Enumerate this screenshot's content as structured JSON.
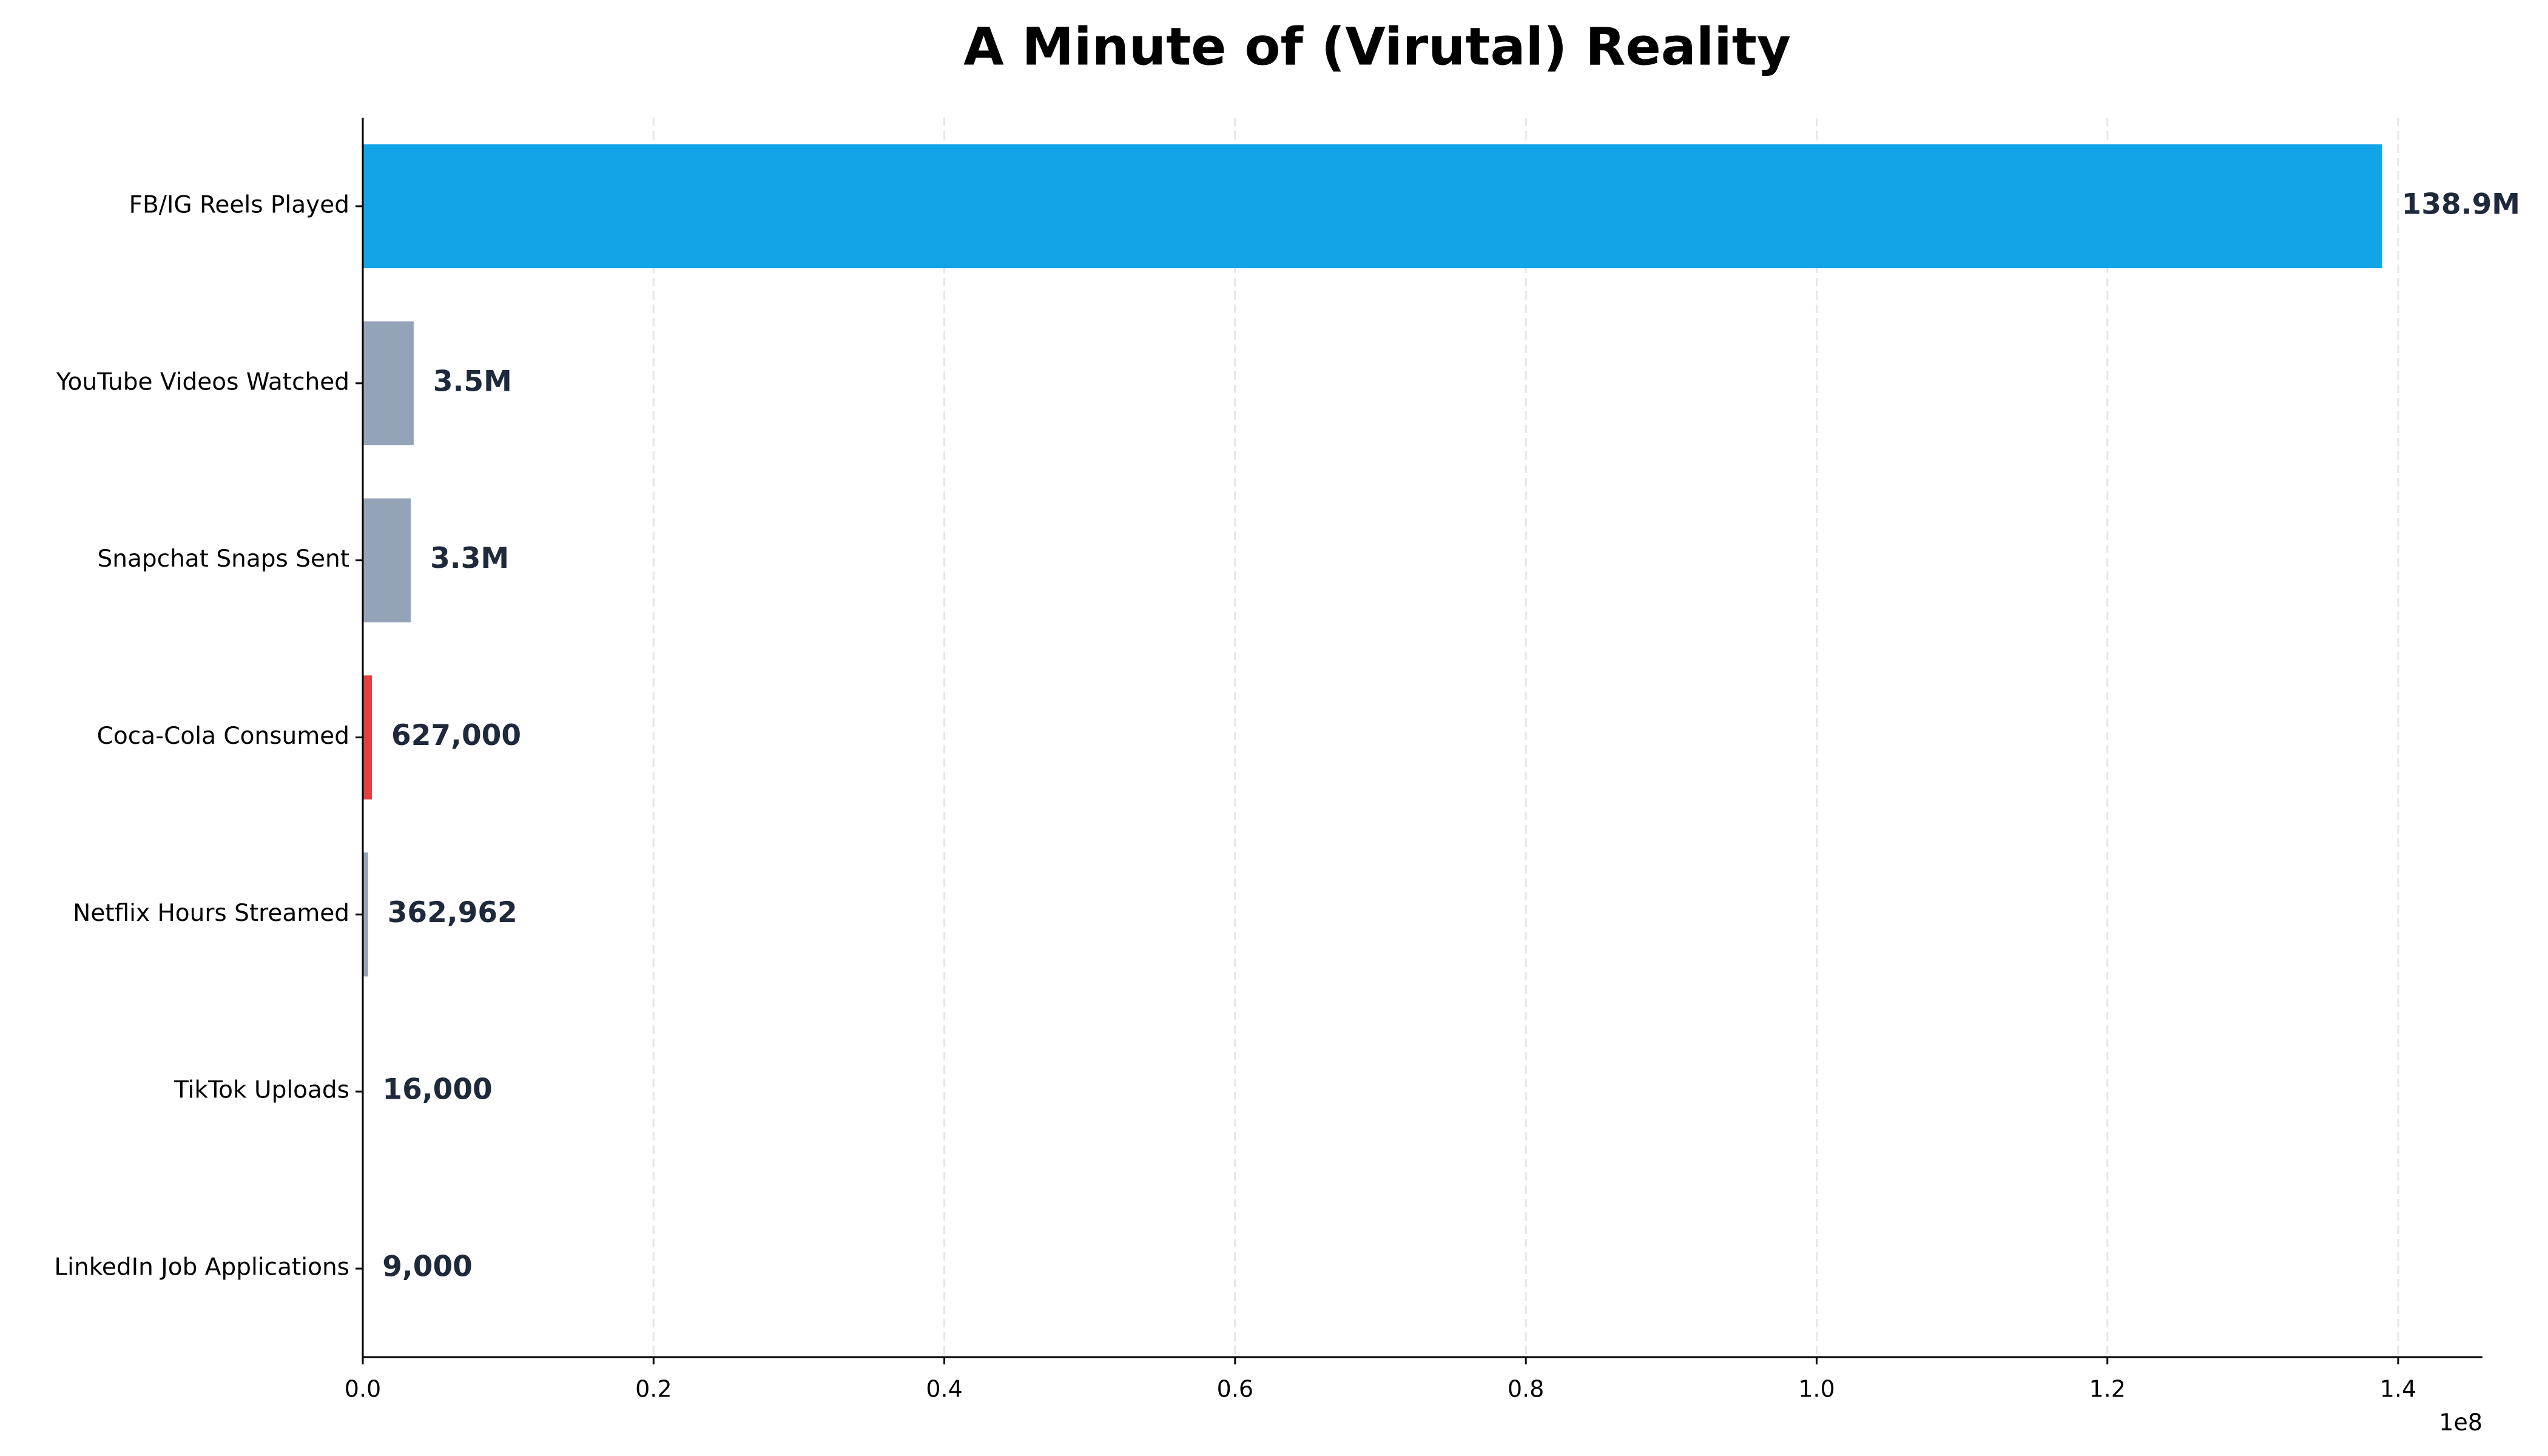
{
  "chart_data": {
    "type": "barh",
    "title": "A Minute of (Virutal) Reality",
    "categories": [
      "FB/IG Reels Played",
      "YouTube Videos Watched",
      "Snapchat Snaps Sent",
      "Coca-Cola Consumed",
      "Netflix Hours Streamed",
      "TikTok Uploads",
      "LinkedIn Job Applications"
    ],
    "values": [
      138900000,
      3500000,
      3300000,
      627000,
      362962,
      16000,
      9000
    ],
    "value_labels": [
      "138.9M",
      "3.5M",
      "3.3M",
      "627,000",
      "362,962",
      "16,000",
      "9,000"
    ],
    "colors": [
      "#11a5e8",
      "#94a3b8",
      "#94a3b8",
      "#e53e3e",
      "#94a3b8",
      "#94a3b8",
      "#94a3b8"
    ],
    "xlim": [
      0,
      145800000
    ],
    "xticks": [
      {
        "value": 0,
        "label": "0.0"
      },
      {
        "value": 20000000,
        "label": "0.2"
      },
      {
        "value": 40000000,
        "label": "0.4"
      },
      {
        "value": 60000000,
        "label": "0.6"
      },
      {
        "value": 80000000,
        "label": "0.8"
      },
      {
        "value": 100000000,
        "label": "1.0"
      },
      {
        "value": 120000000,
        "label": "1.2"
      },
      {
        "value": 140000000,
        "label": "1.4"
      }
    ],
    "x_offset_label": "1e8",
    "grid": true
  }
}
